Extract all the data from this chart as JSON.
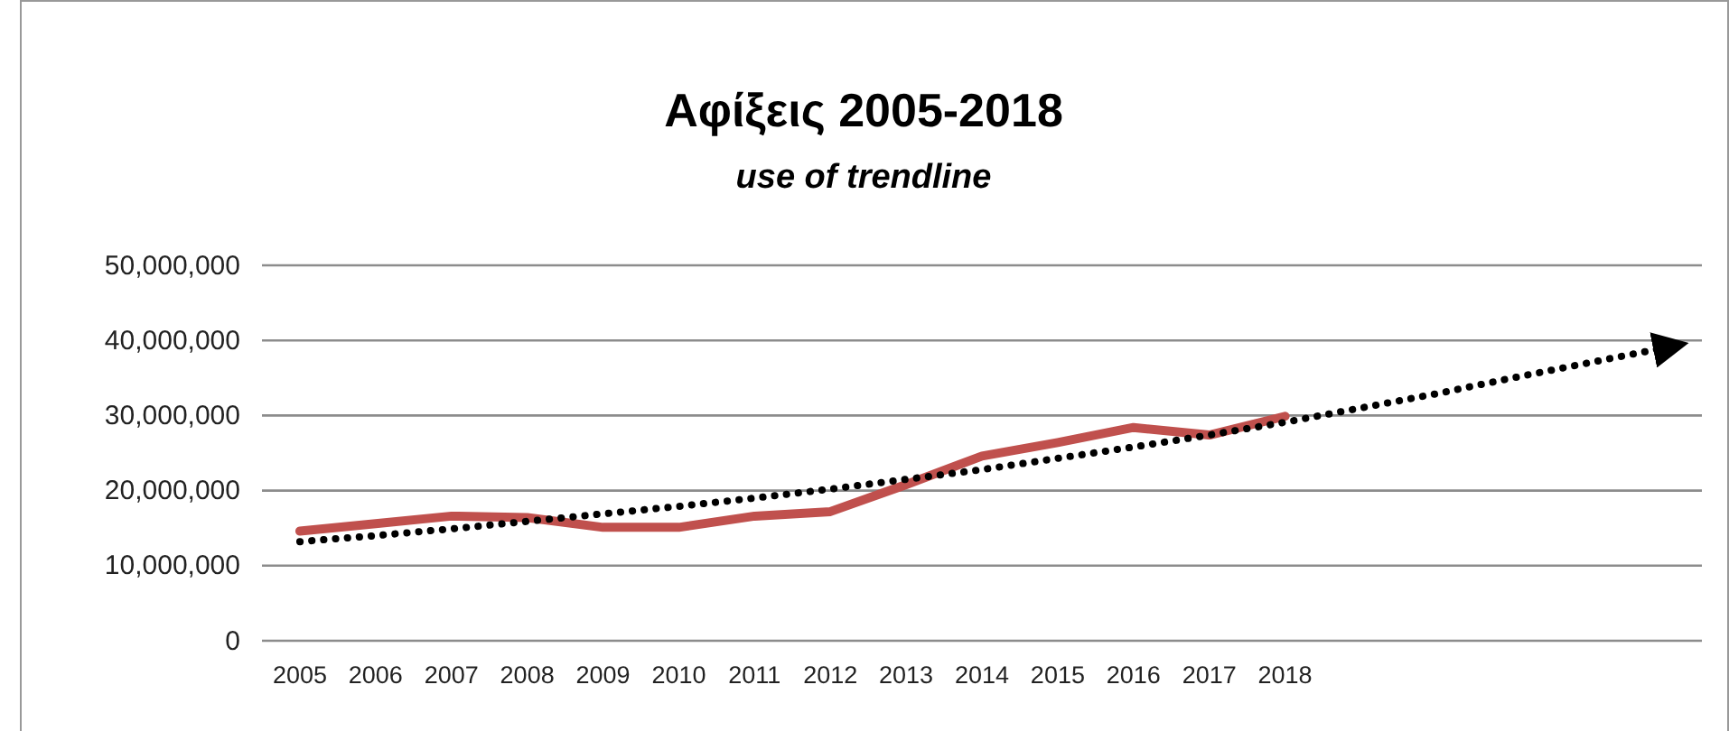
{
  "chart_data": {
    "type": "line",
    "title": "Αφίξεις 2005-2018",
    "subtitle": "use of trendline",
    "categories": [
      "2005",
      "2006",
      "2007",
      "2008",
      "2009",
      "2010",
      "2011",
      "2012",
      "2013",
      "2014",
      "2015",
      "2016",
      "2017",
      "2018",
      null,
      null,
      null,
      null,
      null
    ],
    "series": [
      {
        "color": "#c0504d",
        "values": [
          14600000,
          15600000,
          16600000,
          16400000,
          15100000,
          15100000,
          16600000,
          17200000,
          20800000,
          24600000,
          26400000,
          28400000,
          27400000,
          29900000,
          null,
          null,
          null,
          null,
          null
        ]
      },
      {
        "color": "#000000",
        "line_style": "dotted",
        "values": [
          13200000,
          14000000,
          14900000,
          15900000,
          16900000,
          17900000,
          19000000,
          20200000,
          21500000,
          22800000,
          24300000,
          25800000,
          27400000,
          29100000,
          31000000,
          32900000,
          35000000,
          37000000,
          39000000
        ]
      }
    ],
    "ylim": [
      0,
      50000000
    ],
    "yticks": [
      0,
      {
        "value": 10000000,
        "label": "10,000,000"
      },
      {
        "value": 20000000,
        "label": "20,000,000"
      },
      {
        "value": 30000000,
        "label": "30,000,000"
      },
      {
        "value": 40000000,
        "label": "40,000,000"
      },
      {
        "value": 50000000,
        "label": "50,000,000"
      }
    ],
    "grid": "y",
    "marker": "none",
    "line_style": "solid"
  }
}
